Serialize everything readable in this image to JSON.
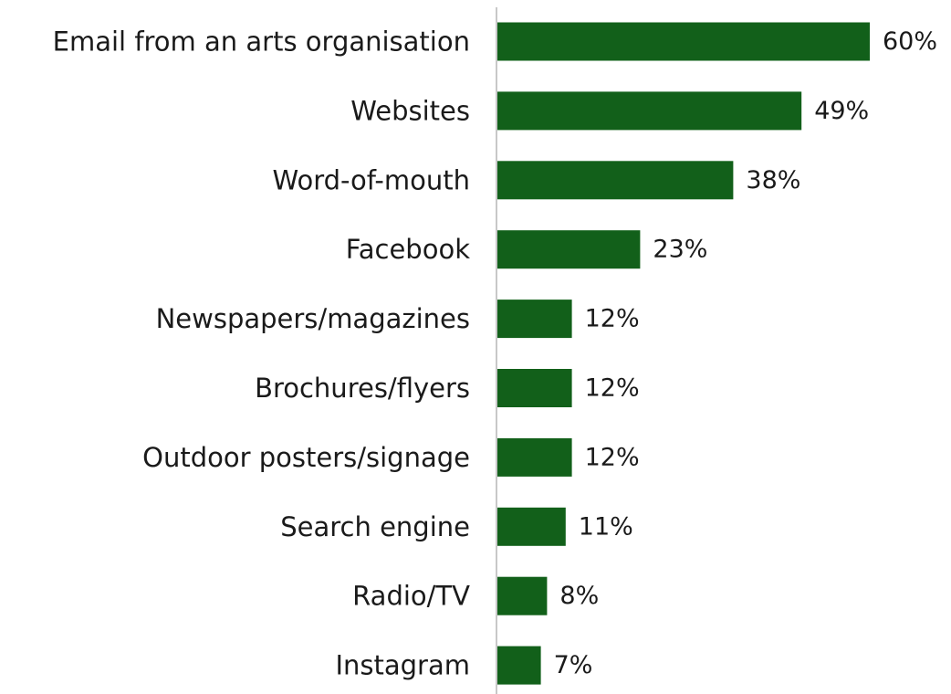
{
  "chart_data": {
    "type": "bar",
    "orientation": "horizontal",
    "categories": [
      "Email from an arts organisation",
      "Websites",
      "Word-of-mouth",
      "Facebook",
      "Newspapers/magazines",
      "Brochures/flyers",
      "Outdoor posters/signage",
      "Search engine",
      "Radio/TV",
      "Instagram"
    ],
    "values": [
      60,
      49,
      38,
      23,
      12,
      12,
      12,
      11,
      8,
      7
    ],
    "value_labels": [
      "60%",
      "49%",
      "38%",
      "23%",
      "12%",
      "12%",
      "12%",
      "11%",
      "8%",
      "7%"
    ],
    "unit": "%",
    "xlim": [
      0,
      60
    ],
    "grid": false,
    "legend": "none",
    "bar_color": "#12601a",
    "axis_color": "#c8c8c8"
  }
}
